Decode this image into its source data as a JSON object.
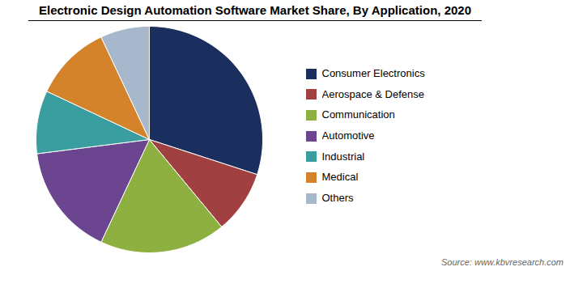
{
  "chart_data": {
    "type": "pie",
    "title": "Electronic Design Automation Software Market Share, By Application, 2020",
    "categories": [
      "Consumer Electronics",
      "Aerospace & Defense",
      "Communication",
      "Automotive",
      "Industrial",
      "Medical",
      "Others"
    ],
    "values": [
      30,
      9,
      18,
      16,
      9,
      11,
      7
    ],
    "colors": [
      "#1b2f5e",
      "#a04040",
      "#8db040",
      "#6b4590",
      "#3a9ea0",
      "#d4832a",
      "#a8b8cc"
    ],
    "legend": "right",
    "caption": "Source: www.kbvresearch.com"
  }
}
